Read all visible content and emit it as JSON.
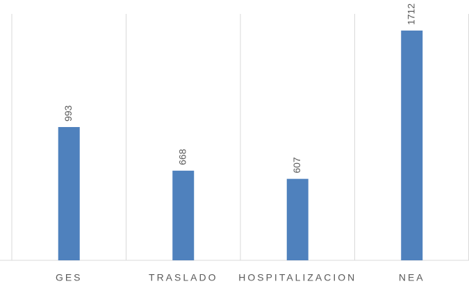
{
  "chart_data": {
    "type": "bar",
    "categories": [
      "GES",
      "TRASLADO",
      "HOSPITALIZACION",
      "NEA"
    ],
    "values": [
      993,
      668,
      607,
      1712
    ],
    "color": "#4f81bd",
    "ylim": [
      0,
      1800
    ],
    "category_grid": true,
    "data_labels": true
  }
}
